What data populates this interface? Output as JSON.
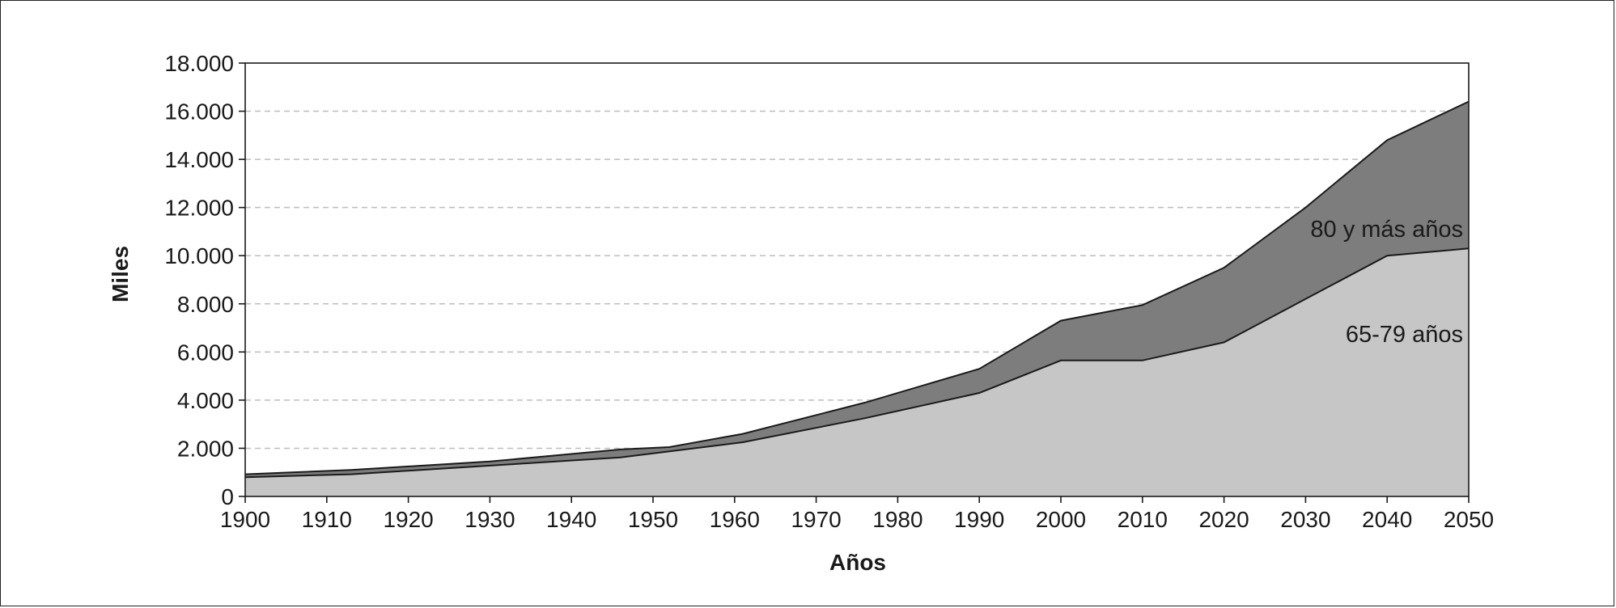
{
  "chart_data": {
    "type": "area",
    "stacked": true,
    "xlabel": "Años",
    "ylabel": "Miles",
    "ylim": [
      0,
      18000
    ],
    "xlim": [
      1900,
      2050
    ],
    "x_ticks": [
      1900,
      1910,
      1920,
      1930,
      1940,
      1950,
      1960,
      1970,
      1980,
      1990,
      2000,
      2010,
      2020,
      2030,
      2040,
      2050
    ],
    "y_ticks": [
      0,
      2000,
      4000,
      6000,
      8000,
      10000,
      12000,
      14000,
      16000,
      18000
    ],
    "x_tick_labels": [
      "1900",
      "1910",
      "1920",
      "1930",
      "1940",
      "1950",
      "1960",
      "1970",
      "1980",
      "1990",
      "2000",
      "2010",
      "2020",
      "2030",
      "2040",
      "2050"
    ],
    "y_tick_labels": [
      "0",
      "2.000",
      "4.000",
      "6.000",
      "8.000",
      "10.000",
      "12.000",
      "14.000",
      "16.000",
      "18.000"
    ],
    "grid": {
      "horizontal": true,
      "style": "dashed"
    },
    "series": [
      {
        "name": "65-79 años",
        "color": "#c6c6c6",
        "points": [
          [
            1900,
            800
          ],
          [
            1913,
            920
          ],
          [
            1930,
            1280
          ],
          [
            1946,
            1620
          ],
          [
            1961,
            2250
          ],
          [
            1976,
            3250
          ],
          [
            1990,
            4300
          ],
          [
            2000,
            5650
          ],
          [
            2010,
            5650
          ],
          [
            2020,
            6400
          ],
          [
            2030,
            8200
          ],
          [
            2040,
            10000
          ],
          [
            2050,
            10300
          ]
        ]
      },
      {
        "name": "80 y más años",
        "color": "#7d7d7d",
        "points": [
          [
            1900,
            920
          ],
          [
            1913,
            1100
          ],
          [
            1930,
            1450
          ],
          [
            1946,
            1950
          ],
          [
            1952,
            2050
          ],
          [
            1961,
            2600
          ],
          [
            1976,
            3900
          ],
          [
            1990,
            5300
          ],
          [
            2000,
            7300
          ],
          [
            2010,
            7950
          ],
          [
            2020,
            9500
          ],
          [
            2030,
            12000
          ],
          [
            2040,
            14800
          ],
          [
            2050,
            16400
          ]
        ]
      }
    ]
  },
  "colors": {
    "frame": "#222222",
    "gridline": "#bdbdbd",
    "line": "#1a1a1a"
  }
}
